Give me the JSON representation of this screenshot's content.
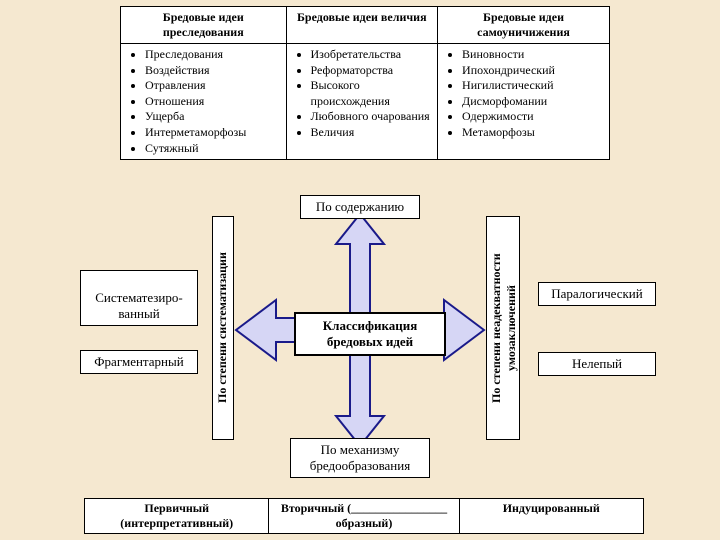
{
  "colors": {
    "background": "#f5e8d0",
    "box_bg": "#ffffff",
    "border": "#000000",
    "arrow_fill": "#d6d6f5",
    "arrow_stroke": "#1a1a8a"
  },
  "top_table": {
    "headers": [
      "Бредовые идеи преследования",
      "Бредовые идеи величия",
      "Бредовые идеи самоуничижения"
    ],
    "cols": [
      [
        "Преследования",
        "Воздействия",
        "Отравления",
        "Отношения",
        "Ущерба",
        "Интерметаморфозы",
        "Сутяжный"
      ],
      [
        "Изобретательства",
        "Реформаторства",
        "Высокого происхождения",
        "Любовного очарования",
        "Величия"
      ],
      [
        "Виновности",
        "Ипохондрический",
        "Нигилистический",
        "Дисморфомании",
        "Одержимости",
        "Метаморфозы"
      ]
    ]
  },
  "diagram": {
    "center": "Классификация бредовых идей",
    "top": "По содержанию",
    "bottom": "По механизму бредообразования",
    "left_axis": "По степени систематизации",
    "right_axis": "По степени неадекватности умозаключений",
    "left_items": [
      "Систематезиро-\nванный",
      "Фрагментарный"
    ],
    "right_items": [
      "Паралогический",
      "Нелепый"
    ]
  },
  "bottom_table": {
    "cells": [
      "Первичный (интерпретативный)",
      "Вторичный (________________ образный)",
      "Индуцированный"
    ]
  }
}
